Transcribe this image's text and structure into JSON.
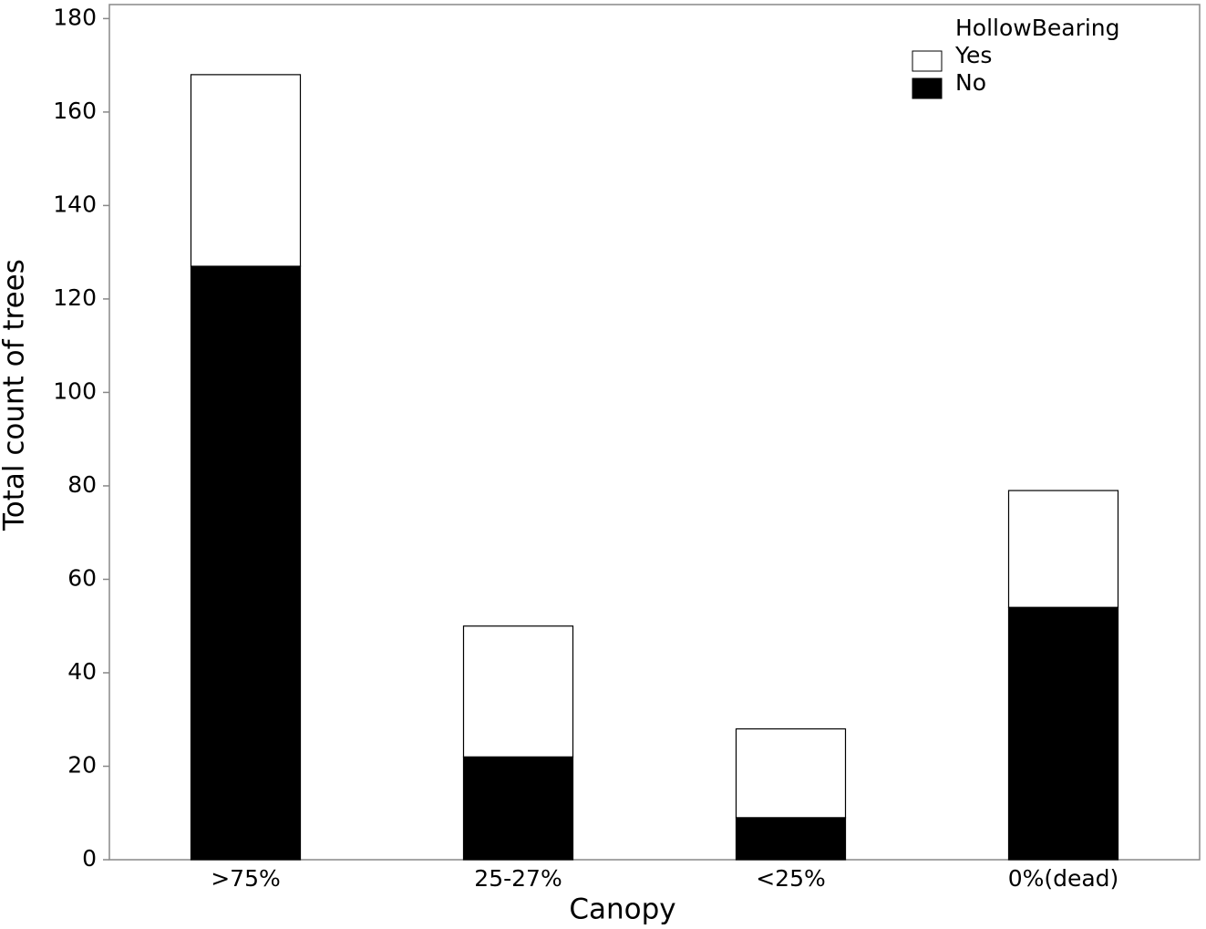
{
  "chart_data": {
    "type": "stacked_bar",
    "x_label": "Canopy",
    "y_label": "Total count of trees",
    "categories": [
      ">75%",
      "25-27%",
      "<25%",
      "0%(dead)"
    ],
    "series": [
      {
        "name": "No",
        "color": "#000000",
        "values": [
          127,
          22,
          9,
          54
        ]
      },
      {
        "name": "Yes",
        "color": "#ffffff",
        "values": [
          41,
          28,
          19,
          25
        ]
      }
    ],
    "legend_title": "HollowBearing",
    "legend": "upper right",
    "ylim": [
      0,
      183
    ],
    "yticks": [
      0,
      20,
      40,
      60,
      80,
      100,
      120,
      140,
      160,
      180
    ],
    "grid": false
  }
}
